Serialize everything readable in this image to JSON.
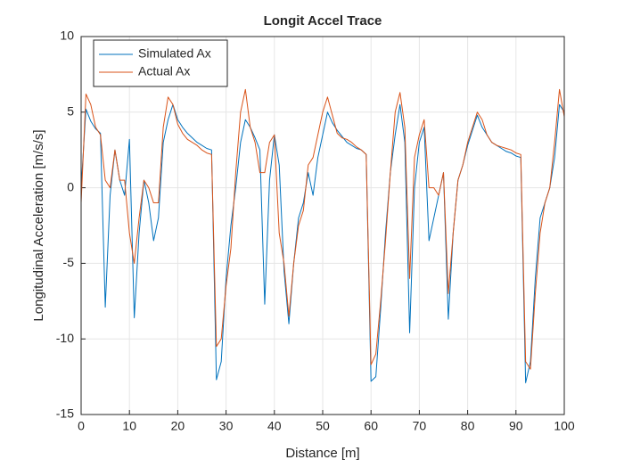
{
  "chart_data": {
    "type": "line",
    "title": "Longit Accel Trace",
    "xlabel": "Distance [m]",
    "ylabel": "Longitudinal Acceleration [m/s/s]",
    "x": [
      0,
      1,
      2,
      3,
      4,
      5,
      6,
      7,
      8,
      9,
      10,
      11,
      12,
      13,
      14,
      15,
      16,
      17,
      18,
      19,
      20,
      21,
      22,
      23,
      24,
      25,
      26,
      27,
      28,
      29,
      30,
      31,
      32,
      33,
      34,
      35,
      36,
      37,
      38,
      39,
      40,
      41,
      42,
      43,
      44,
      45,
      46,
      47,
      48,
      49,
      50,
      51,
      52,
      53,
      54,
      55,
      56,
      57,
      58,
      59,
      60,
      61,
      62,
      63,
      64,
      65,
      66,
      67,
      68,
      69,
      70,
      71,
      72,
      73,
      74,
      75,
      76,
      77,
      78,
      79,
      80,
      81,
      82,
      83,
      84,
      85,
      86,
      87,
      88,
      89,
      90,
      91,
      92,
      93,
      94,
      95,
      96,
      97,
      98,
      99,
      100
    ],
    "series": [
      {
        "name": "Simulated Ax",
        "color": "#0072bd",
        "values": [
          0,
          5.2,
          4.4,
          3.9,
          3.6,
          -7.9,
          -0.5,
          2.5,
          0.5,
          -0.5,
          3.2,
          -8.6,
          -3,
          0.5,
          -1,
          -3.5,
          -2,
          3,
          4.5,
          5.5,
          4.5,
          4,
          3.6,
          3.3,
          3,
          2.8,
          2.6,
          2.5,
          -12.7,
          -11.5,
          -6,
          -2.5,
          0,
          3,
          4.5,
          4,
          3.3,
          2.5,
          -7.7,
          0.5,
          3.5,
          1.5,
          -5.5,
          -9,
          -5,
          -2,
          -1,
          1,
          -0.5,
          2,
          3.5,
          5,
          4.3,
          3.8,
          3.4,
          3,
          2.8,
          2.6,
          2.5,
          2.2,
          -12.8,
          -12.5,
          -8,
          -3,
          1,
          3.5,
          5.5,
          3,
          -9.6,
          0,
          3,
          4,
          -3.5,
          -2,
          -0.5,
          1,
          -8.7,
          -3,
          0.5,
          1.5,
          2.8,
          3.8,
          4.8,
          4,
          3.5,
          3,
          2.8,
          2.6,
          2.4,
          2.3,
          2.1,
          2,
          -12.9,
          -11.5,
          -6,
          -2,
          -1,
          0,
          2,
          5.5,
          5
        ]
      },
      {
        "name": "Actual Ax",
        "color": "#d95319",
        "values": [
          -1,
          6.2,
          5.5,
          4,
          3.5,
          0.5,
          0,
          2.5,
          0.5,
          0.5,
          -3,
          -5,
          -2,
          0.5,
          0,
          -1,
          -1,
          4,
          6,
          5.5,
          4.2,
          3.6,
          3.2,
          3,
          2.8,
          2.5,
          2.3,
          2.2,
          -10.5,
          -10,
          -6.5,
          -4,
          1,
          5,
          6.5,
          4,
          3,
          1,
          1,
          3,
          3.5,
          -3,
          -5,
          -8.5,
          -5,
          -2.5,
          -1.5,
          1.5,
          2,
          3.5,
          5,
          6,
          4.8,
          3.6,
          3.3,
          3.2,
          3,
          2.7,
          2.5,
          2.2,
          -11.7,
          -11,
          -7.5,
          -3.5,
          1,
          5,
          6.3,
          4,
          -6,
          2,
          3.5,
          4.5,
          0,
          0,
          -0.5,
          1,
          -7,
          -3,
          0.5,
          1.5,
          3,
          4,
          5,
          4.5,
          3.5,
          3,
          2.8,
          2.7,
          2.6,
          2.5,
          2.3,
          2.2,
          -11.5,
          -12,
          -7,
          -3,
          -1,
          0,
          3,
          6.5,
          4.7
        ]
      }
    ],
    "xlim": [
      0,
      100
    ],
    "xticks": [
      0,
      10,
      20,
      30,
      40,
      50,
      60,
      70,
      80,
      90,
      100
    ],
    "ylim": [
      -15,
      10
    ],
    "yticks": [
      -15,
      -10,
      -5,
      0,
      5,
      10
    ],
    "grid": true,
    "legend": "northwest"
  }
}
